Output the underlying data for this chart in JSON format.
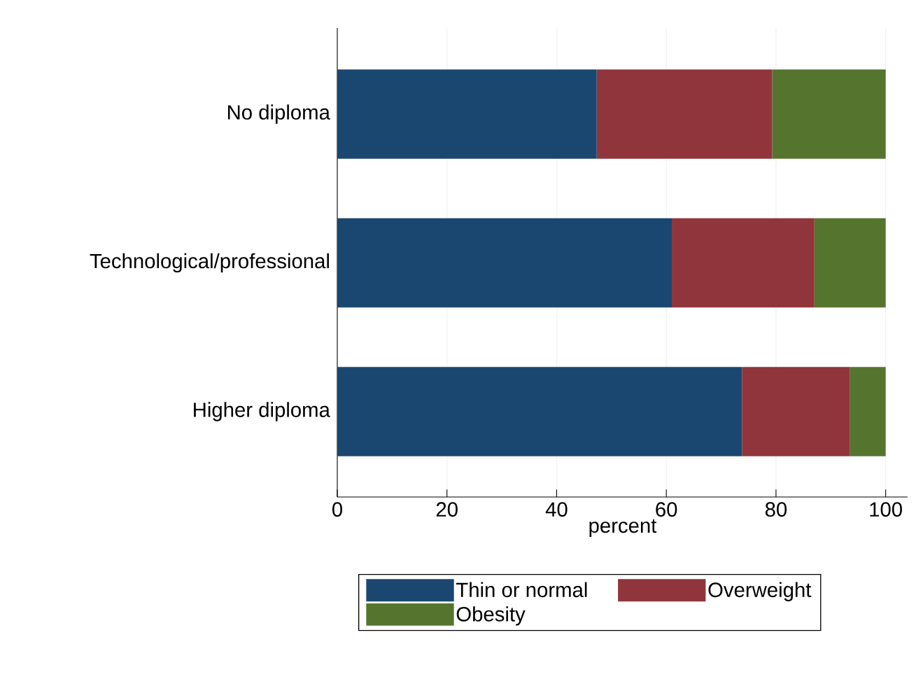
{
  "chart_data": {
    "type": "bar",
    "orientation": "horizontal",
    "stacked": true,
    "categories": [
      "No diploma",
      "Technological/professional",
      "Higher diploma"
    ],
    "series": [
      {
        "name": "Thin or normal",
        "color": "#1a476f",
        "values": [
          47.3,
          61.0,
          73.8
        ]
      },
      {
        "name": "Overweight",
        "color": "#90353b",
        "values": [
          32.0,
          26.0,
          19.7
        ]
      },
      {
        "name": "Obesity",
        "color": "#55752f",
        "values": [
          20.7,
          13.0,
          6.5
        ]
      }
    ],
    "xlabel": "percent",
    "xlim": [
      0,
      104
    ],
    "xticks": [
      0,
      20,
      40,
      60,
      80,
      100
    ],
    "grid": "x",
    "legend": "bottom"
  }
}
